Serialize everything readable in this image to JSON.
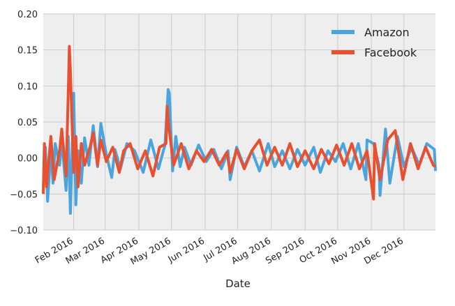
{
  "chart_data": {
    "type": "line",
    "xlabel": "Date",
    "ylabel": "",
    "xlim": [
      "2016-01-04",
      "2016-12-30"
    ],
    "ylim": [
      -0.1,
      0.2
    ],
    "y_ticks": [
      -0.1,
      -0.05,
      0.0,
      0.05,
      0.1,
      0.15,
      0.2
    ],
    "y_tick_labels": [
      "−0.10",
      "−0.05",
      "0.00",
      "0.05",
      "0.10",
      "0.15",
      "0.20"
    ],
    "x_ticks": [
      "2016-02-01",
      "2016-03-01",
      "2016-04-01",
      "2016-05-01",
      "2016-06-01",
      "2016-07-01",
      "2016-08-01",
      "2016-09-01",
      "2016-10-01",
      "2016-11-01",
      "2016-12-01"
    ],
    "x_tick_labels": [
      "Feb 2016",
      "Mar 2016",
      "Apr 2016",
      "May 2016",
      "Jun 2016",
      "Jul 2016",
      "Aug 2016",
      "Sep 2016",
      "Oct 2016",
      "Nov 2016",
      "Dec 2016"
    ],
    "grid": true,
    "legend_position": "top-right",
    "background": "#eeeeee",
    "series": [
      {
        "name": "Amazon",
        "color": "#4ba5dc",
        "x": [
          "2016-01-04",
          "2016-01-06",
          "2016-01-08",
          "2016-01-11",
          "2016-01-13",
          "2016-01-15",
          "2016-01-19",
          "2016-01-21",
          "2016-01-25",
          "2016-01-27",
          "2016-01-29",
          "2016-02-01",
          "2016-02-03",
          "2016-02-05",
          "2016-02-08",
          "2016-02-11",
          "2016-02-15",
          "2016-02-19",
          "2016-02-23",
          "2016-02-26",
          "2016-03-02",
          "2016-03-07",
          "2016-03-10",
          "2016-03-15",
          "2016-03-21",
          "2016-03-28",
          "2016-04-05",
          "2016-04-12",
          "2016-04-19",
          "2016-04-25",
          "2016-04-28",
          "2016-04-29",
          "2016-05-02",
          "2016-05-05",
          "2016-05-09",
          "2016-05-13",
          "2016-05-19",
          "2016-05-26",
          "2016-06-02",
          "2016-06-09",
          "2016-06-16",
          "2016-06-22",
          "2016-06-24",
          "2016-06-30",
          "2016-07-07",
          "2016-07-14",
          "2016-07-21",
          "2016-07-28",
          "2016-07-29",
          "2016-08-04",
          "2016-08-11",
          "2016-08-18",
          "2016-08-25",
          "2016-09-01",
          "2016-09-09",
          "2016-09-15",
          "2016-09-22",
          "2016-09-29",
          "2016-10-06",
          "2016-10-13",
          "2016-10-20",
          "2016-10-27",
          "2016-10-28",
          "2016-11-03",
          "2016-11-08",
          "2016-11-09",
          "2016-11-14",
          "2016-11-18",
          "2016-11-25",
          "2016-12-01",
          "2016-12-08",
          "2016-12-15",
          "2016-12-22",
          "2016-12-29",
          "2016-12-30"
        ],
        "values": [
          -0.04,
          0.015,
          -0.06,
          0.012,
          -0.035,
          0.02,
          -0.01,
          0.025,
          -0.045,
          0.03,
          -0.077,
          0.09,
          -0.065,
          0.01,
          -0.035,
          0.028,
          -0.01,
          0.045,
          -0.012,
          0.048,
          0.005,
          -0.027,
          0.012,
          -0.015,
          0.02,
          0.01,
          -0.02,
          0.025,
          -0.015,
          0.018,
          0.095,
          0.09,
          -0.018,
          0.03,
          -0.012,
          0.015,
          -0.01,
          0.018,
          -0.005,
          0.012,
          -0.015,
          0.01,
          -0.03,
          0.015,
          -0.012,
          0.01,
          -0.018,
          0.015,
          0.02,
          -0.012,
          0.01,
          -0.015,
          0.012,
          -0.01,
          0.015,
          -0.02,
          0.01,
          -0.005,
          0.02,
          -0.015,
          0.02,
          -0.03,
          0.025,
          0.02,
          -0.01,
          -0.052,
          0.04,
          -0.035,
          0.03,
          -0.012,
          0.015,
          -0.01,
          0.02,
          0.012,
          -0.018
        ]
      },
      {
        "name": "Facebook",
        "color": "#e8502f",
        "x": [
          "2016-01-04",
          "2016-01-05",
          "2016-01-07",
          "2016-01-11",
          "2016-01-14",
          "2016-01-19",
          "2016-01-21",
          "2016-01-25",
          "2016-01-27",
          "2016-01-28",
          "2016-01-29",
          "2016-02-01",
          "2016-02-03",
          "2016-02-05",
          "2016-02-08",
          "2016-02-11",
          "2016-02-16",
          "2016-02-19",
          "2016-02-23",
          "2016-02-26",
          "2016-03-02",
          "2016-03-08",
          "2016-03-14",
          "2016-03-18",
          "2016-03-24",
          "2016-03-31",
          "2016-04-07",
          "2016-04-14",
          "2016-04-20",
          "2016-04-26",
          "2016-04-27",
          "2016-04-28",
          "2016-05-03",
          "2016-05-10",
          "2016-05-17",
          "2016-05-24",
          "2016-05-31",
          "2016-06-07",
          "2016-06-14",
          "2016-06-21",
          "2016-06-24",
          "2016-06-30",
          "2016-07-07",
          "2016-07-14",
          "2016-07-21",
          "2016-07-28",
          "2016-08-04",
          "2016-08-11",
          "2016-08-18",
          "2016-08-25",
          "2016-09-01",
          "2016-09-09",
          "2016-09-16",
          "2016-09-23",
          "2016-09-30",
          "2016-10-07",
          "2016-10-14",
          "2016-10-21",
          "2016-10-28",
          "2016-11-03",
          "2016-11-04",
          "2016-11-09",
          "2016-11-16",
          "2016-11-23",
          "2016-11-30",
          "2016-12-07",
          "2016-12-14",
          "2016-12-21",
          "2016-12-28",
          "2016-12-30"
        ],
        "values": [
          -0.05,
          0.02,
          -0.04,
          0.03,
          -0.03,
          0.01,
          0.04,
          -0.025,
          0.09,
          0.155,
          0.12,
          -0.02,
          0.03,
          -0.04,
          0.02,
          -0.01,
          0.015,
          0.035,
          -0.01,
          0.025,
          -0.005,
          0.015,
          -0.02,
          0.01,
          0.02,
          -0.015,
          0.01,
          -0.025,
          0.015,
          0.02,
          0.072,
          0.05,
          -0.01,
          0.02,
          -0.015,
          0.01,
          -0.005,
          0.012,
          -0.01,
          0.008,
          -0.02,
          0.012,
          -0.015,
          0.01,
          0.025,
          -0.01,
          0.015,
          -0.01,
          0.02,
          -0.012,
          0.01,
          -0.015,
          0.012,
          -0.008,
          0.018,
          -0.01,
          0.02,
          -0.015,
          0.01,
          -0.057,
          0.02,
          -0.03,
          0.025,
          0.038,
          -0.03,
          0.02,
          -0.015,
          0.015,
          -0.01,
          -0.012
        ]
      }
    ]
  }
}
